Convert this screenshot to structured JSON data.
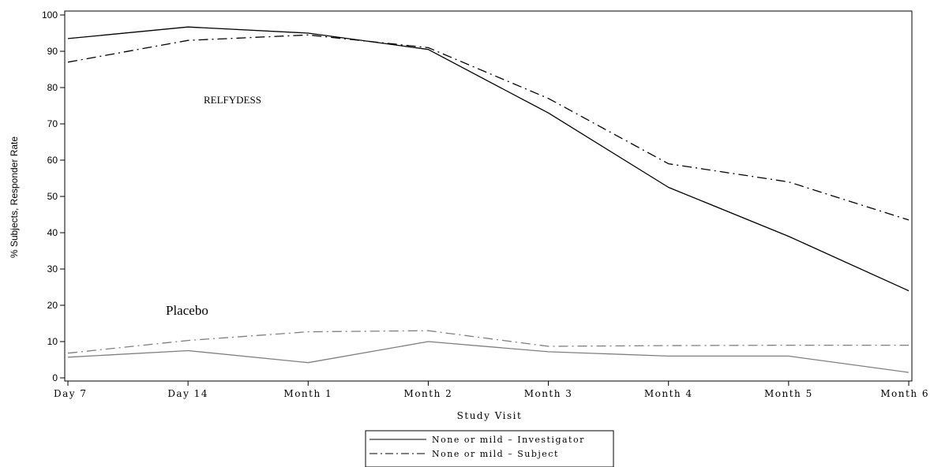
{
  "chart_data": {
    "type": "line",
    "categories": [
      "Day 7",
      "Day 14",
      "Month 1",
      "Month 2",
      "Month 3",
      "Month 4",
      "Month 5",
      "Month 6"
    ],
    "xlabel": "Study Visit",
    "ylabel": "% Subjects, Responder Rate",
    "ylim": [
      0,
      100
    ],
    "yticks": [
      0,
      10,
      20,
      30,
      40,
      50,
      60,
      70,
      80,
      90,
      100
    ],
    "grid": false,
    "annotations": [
      {
        "text": "RELFYDESS",
        "group": "relfydess"
      },
      {
        "text": "Placebo",
        "group": "placebo"
      }
    ],
    "legend": {
      "position": "bottom-center",
      "entries": [
        {
          "label": "None or mild – Investigator",
          "style": "solid"
        },
        {
          "label": "None or mild – Subject",
          "style": "dashdot"
        }
      ]
    },
    "series": [
      {
        "group": "relfydess",
        "style": "solid",
        "color": "#000000",
        "values": [
          93.5,
          96.7,
          95.0,
          90.5,
          73.0,
          52.5,
          39.0,
          24.0
        ]
      },
      {
        "group": "relfydess",
        "style": "dashdot",
        "color": "#000000",
        "values": [
          87.0,
          93.0,
          94.5,
          91.0,
          77.0,
          59.0,
          54.0,
          43.5
        ]
      },
      {
        "group": "placebo",
        "style": "solid",
        "color": "#7f7f7f",
        "values": [
          5.7,
          7.5,
          4.2,
          10.0,
          7.2,
          6.0,
          6.0,
          1.5
        ]
      },
      {
        "group": "placebo",
        "style": "dashdot",
        "color": "#7f7f7f",
        "values": [
          6.8,
          10.3,
          12.7,
          13.0,
          8.7,
          8.9,
          9.0,
          9.0
        ]
      }
    ]
  }
}
